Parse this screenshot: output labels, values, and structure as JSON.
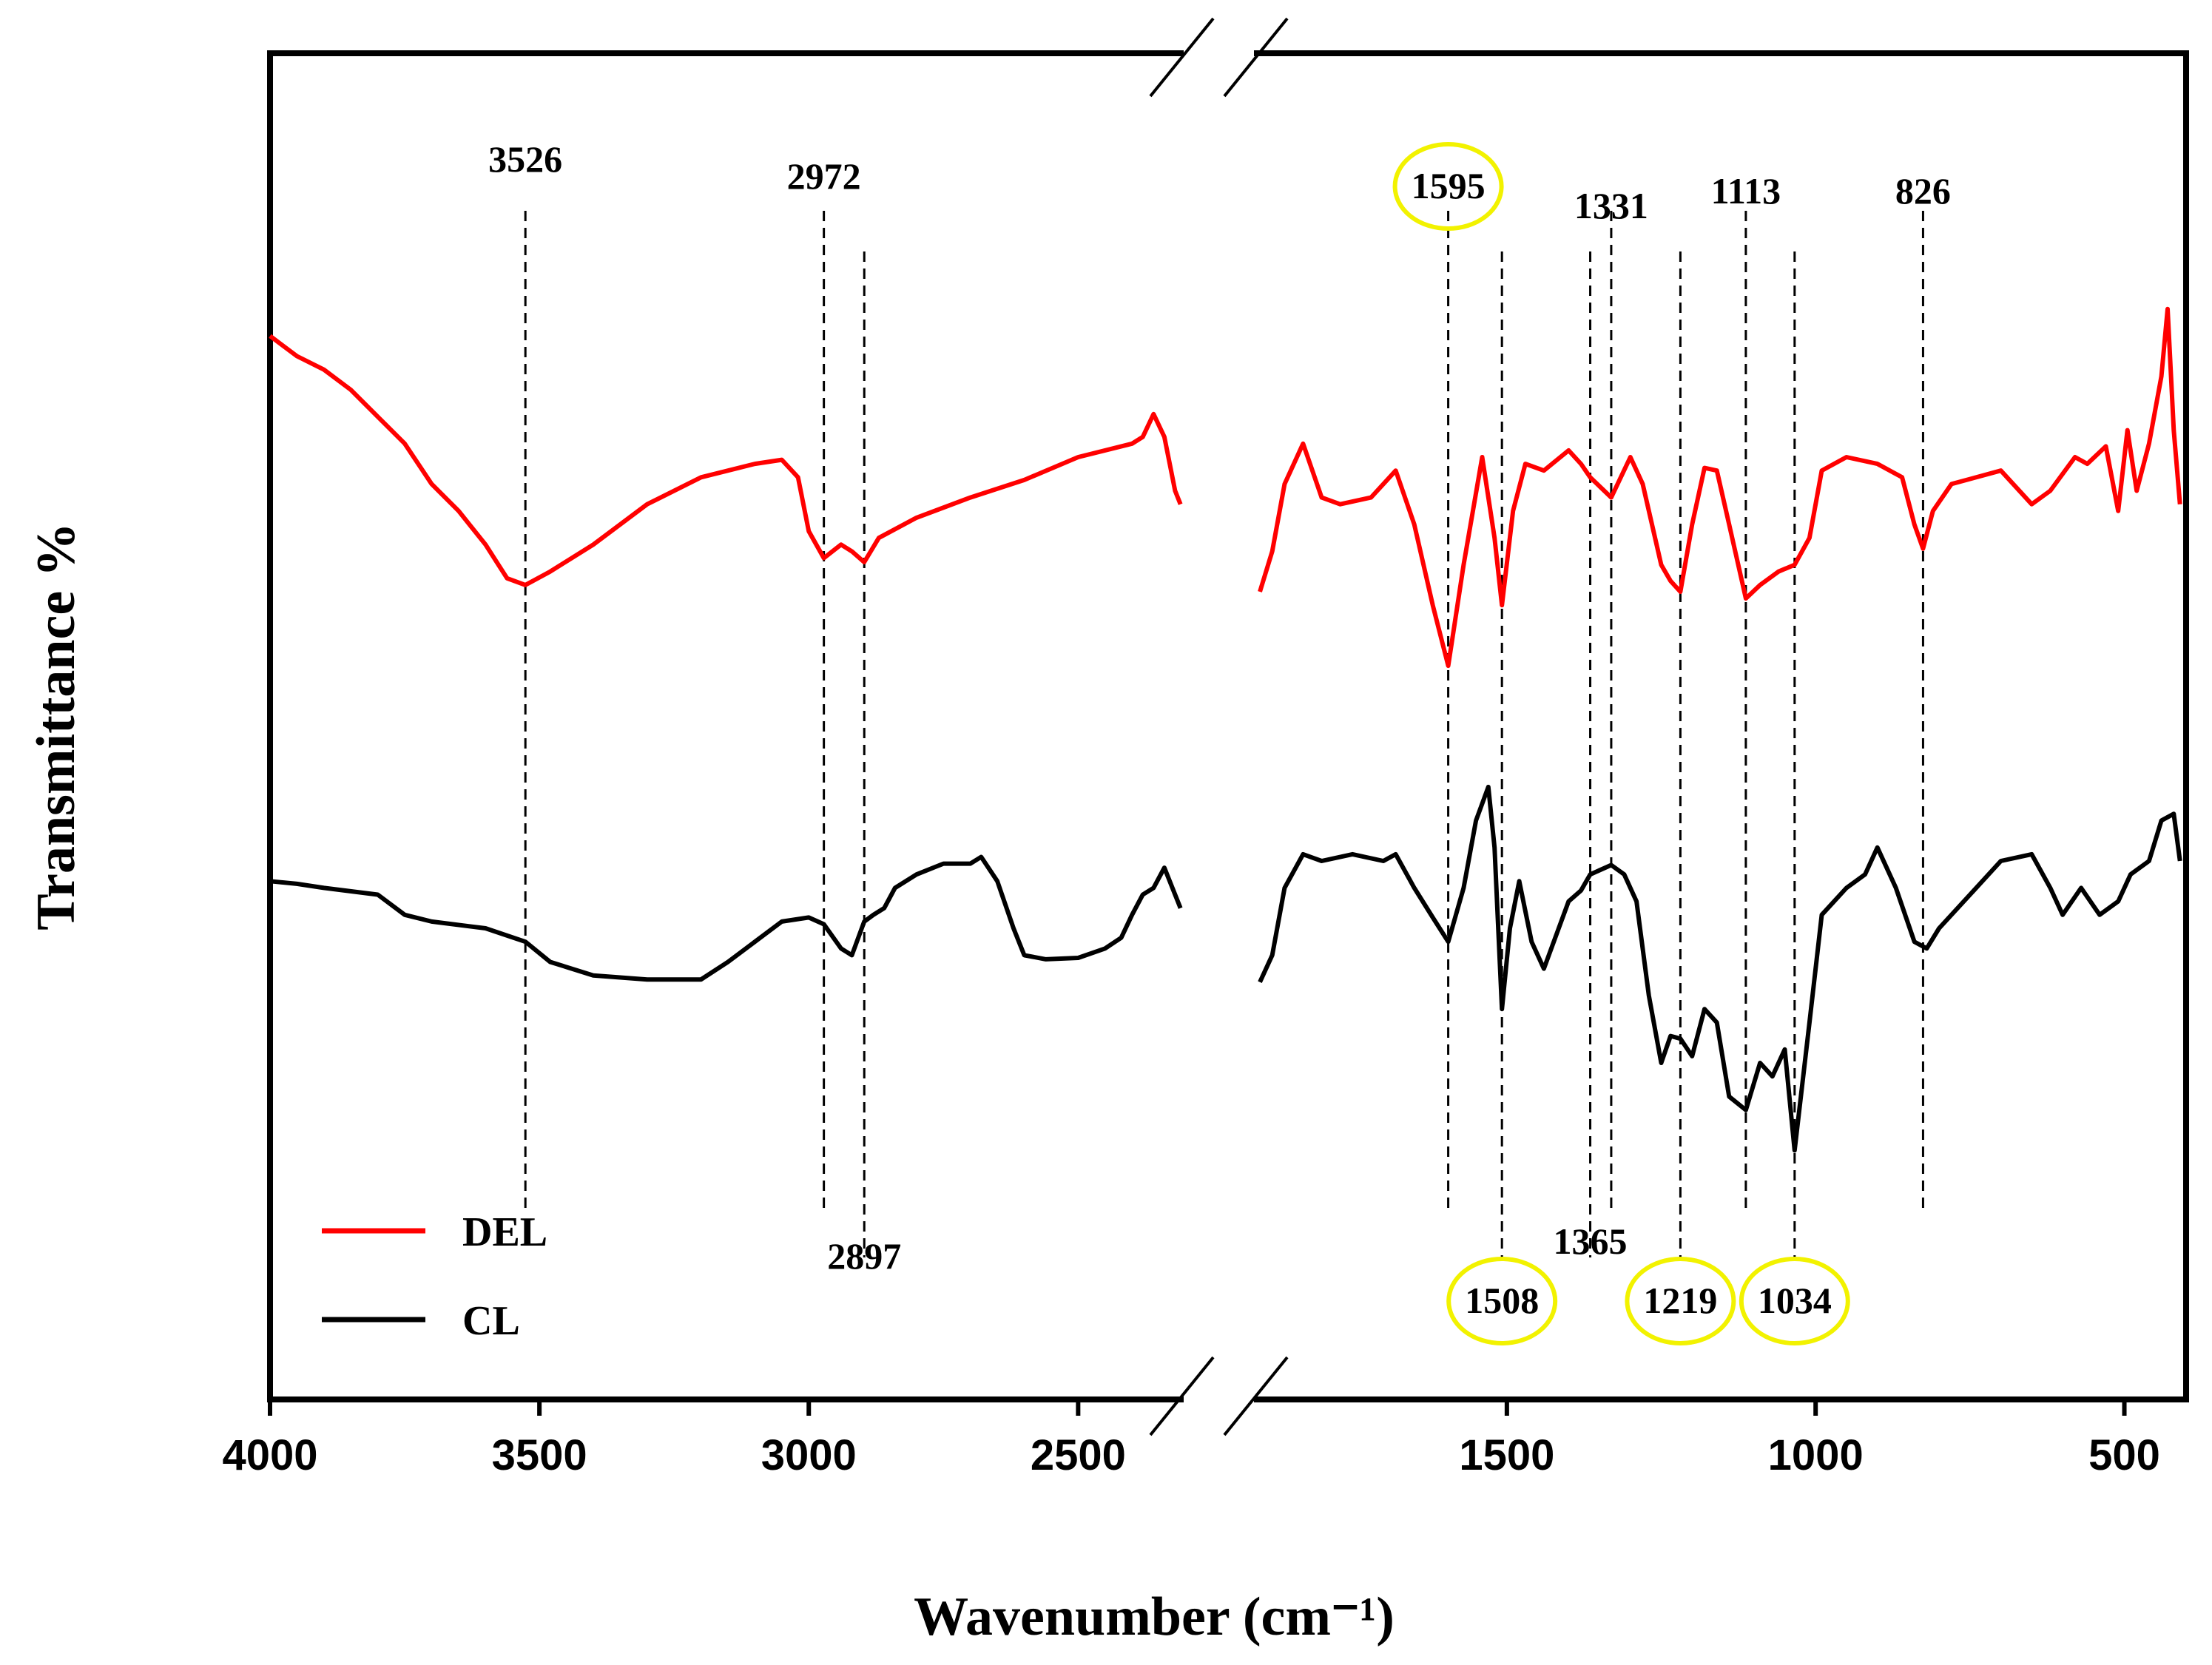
{
  "chart_data": {
    "type": "line",
    "title": "",
    "xlabel": "Wavenumber (cm⁻¹)",
    "ylabel": "Transmittance %",
    "xlim": [
      4000,
      400
    ],
    "axis_break": [
      2300,
      1900
    ],
    "x_ticks": [
      4000,
      3500,
      3000,
      2500,
      1500,
      1000,
      500
    ],
    "x_tick_labels": [
      "4000",
      "3500",
      "3000",
      "2500",
      "1500",
      "1000",
      "500"
    ],
    "y_ticks": [],
    "ylim": [
      0,
      100
    ],
    "legend": {
      "position": "bottom-left",
      "entries": [
        "DEL",
        "CL"
      ]
    },
    "series": [
      {
        "name": "DEL",
        "color": "#ff0000",
        "points": [
          [
            4000,
            79
          ],
          [
            3950,
            77.5
          ],
          [
            3900,
            76.5
          ],
          [
            3850,
            75
          ],
          [
            3800,
            73
          ],
          [
            3750,
            71
          ],
          [
            3700,
            68
          ],
          [
            3650,
            66
          ],
          [
            3600,
            63.5
          ],
          [
            3560,
            61
          ],
          [
            3526,
            60.5
          ],
          [
            3480,
            61.5
          ],
          [
            3400,
            63.5
          ],
          [
            3300,
            66.5
          ],
          [
            3200,
            68.5
          ],
          [
            3100,
            69.5
          ],
          [
            3050,
            69.8
          ],
          [
            3020,
            68.5
          ],
          [
            3000,
            64.5
          ],
          [
            2972,
            62.5
          ],
          [
            2940,
            63.5
          ],
          [
            2920,
            63
          ],
          [
            2897,
            62.2
          ],
          [
            2870,
            64
          ],
          [
            2800,
            65.5
          ],
          [
            2700,
            67
          ],
          [
            2600,
            68.3
          ],
          [
            2500,
            70
          ],
          [
            2400,
            71
          ],
          [
            2380,
            71.5
          ],
          [
            2360,
            73.2
          ],
          [
            2340,
            71.5
          ],
          [
            2320,
            67.5
          ],
          [
            2310,
            66.5
          ]
        ]
      },
      {
        "name": "DEL",
        "color": "#ff0000",
        "points": [
          [
            1900,
            60
          ],
          [
            1880,
            63
          ],
          [
            1860,
            68
          ],
          [
            1830,
            71
          ],
          [
            1800,
            67
          ],
          [
            1770,
            66.5
          ],
          [
            1720,
            67
          ],
          [
            1680,
            69
          ],
          [
            1650,
            65
          ],
          [
            1620,
            59
          ],
          [
            1595,
            54.5
          ],
          [
            1570,
            62
          ],
          [
            1540,
            70
          ],
          [
            1520,
            64
          ],
          [
            1508,
            59
          ],
          [
            1490,
            66
          ],
          [
            1470,
            69.5
          ],
          [
            1440,
            69
          ],
          [
            1400,
            70.5
          ],
          [
            1380,
            69.5
          ],
          [
            1365,
            68.5
          ],
          [
            1331,
            67
          ],
          [
            1300,
            70
          ],
          [
            1280,
            68
          ],
          [
            1250,
            62
          ],
          [
            1235,
            60.8
          ],
          [
            1219,
            60
          ],
          [
            1200,
            65
          ],
          [
            1180,
            69.2
          ],
          [
            1160,
            69
          ],
          [
            1140,
            65
          ],
          [
            1113,
            59.5
          ],
          [
            1090,
            60.5
          ],
          [
            1060,
            61.5
          ],
          [
            1034,
            62
          ],
          [
            1010,
            64
          ],
          [
            990,
            69
          ],
          [
            950,
            70
          ],
          [
            900,
            69.5
          ],
          [
            860,
            68.5
          ],
          [
            840,
            65
          ],
          [
            826,
            63.2
          ],
          [
            810,
            66
          ],
          [
            780,
            68
          ],
          [
            700,
            69
          ],
          [
            650,
            66.5
          ],
          [
            620,
            67.5
          ],
          [
            580,
            70
          ],
          [
            560,
            69.5
          ],
          [
            530,
            70.8
          ],
          [
            510,
            66
          ],
          [
            495,
            72
          ],
          [
            480,
            67.5
          ],
          [
            460,
            71
          ],
          [
            440,
            76
          ],
          [
            430,
            81
          ],
          [
            420,
            72
          ],
          [
            410,
            66.5
          ]
        ]
      },
      {
        "name": "CL",
        "color": "#000000",
        "points": [
          [
            4000,
            38.5
          ],
          [
            3950,
            38.3
          ],
          [
            3900,
            38
          ],
          [
            3800,
            37.5
          ],
          [
            3750,
            36
          ],
          [
            3700,
            35.5
          ],
          [
            3600,
            35
          ],
          [
            3526,
            34
          ],
          [
            3480,
            32.5
          ],
          [
            3400,
            31.5
          ],
          [
            3300,
            31.2
          ],
          [
            3200,
            31.2
          ],
          [
            3150,
            32.5
          ],
          [
            3100,
            34
          ],
          [
            3050,
            35.5
          ],
          [
            3000,
            35.8
          ],
          [
            2972,
            35.3
          ],
          [
            2940,
            33.5
          ],
          [
            2920,
            33
          ],
          [
            2897,
            35.5
          ],
          [
            2880,
            36
          ],
          [
            2860,
            36.5
          ],
          [
            2840,
            38
          ],
          [
            2800,
            39
          ],
          [
            2750,
            39.8
          ],
          [
            2700,
            39.8
          ],
          [
            2680,
            40.3
          ],
          [
            2650,
            38.5
          ],
          [
            2620,
            35
          ],
          [
            2600,
            33
          ],
          [
            2560,
            32.7
          ],
          [
            2500,
            32.8
          ],
          [
            2450,
            33.5
          ],
          [
            2420,
            34.3
          ],
          [
            2400,
            36
          ],
          [
            2380,
            37.5
          ],
          [
            2360,
            38
          ],
          [
            2340,
            39.5
          ],
          [
            2320,
            37.5
          ],
          [
            2310,
            36.5
          ]
        ]
      },
      {
        "name": "CL",
        "color": "#000000",
        "points": [
          [
            1900,
            31
          ],
          [
            1880,
            33
          ],
          [
            1860,
            38
          ],
          [
            1830,
            40.5
          ],
          [
            1800,
            40
          ],
          [
            1750,
            40.5
          ],
          [
            1700,
            40
          ],
          [
            1680,
            40.5
          ],
          [
            1650,
            38
          ],
          [
            1620,
            35.8
          ],
          [
            1595,
            34
          ],
          [
            1570,
            38
          ],
          [
            1550,
            43
          ],
          [
            1530,
            45.5
          ],
          [
            1520,
            41
          ],
          [
            1508,
            29
          ],
          [
            1495,
            35
          ],
          [
            1480,
            38.5
          ],
          [
            1460,
            34
          ],
          [
            1440,
            32
          ],
          [
            1420,
            34.5
          ],
          [
            1400,
            37
          ],
          [
            1380,
            37.8
          ],
          [
            1365,
            39
          ],
          [
            1331,
            39.7
          ],
          [
            1310,
            39
          ],
          [
            1290,
            37
          ],
          [
            1270,
            30
          ],
          [
            1250,
            25
          ],
          [
            1235,
            27
          ],
          [
            1219,
            26.8
          ],
          [
            1200,
            25.5
          ],
          [
            1180,
            29
          ],
          [
            1160,
            28
          ],
          [
            1140,
            22.5
          ],
          [
            1113,
            21.5
          ],
          [
            1090,
            25
          ],
          [
            1070,
            24
          ],
          [
            1050,
            26
          ],
          [
            1034,
            18.5
          ],
          [
            1010,
            28
          ],
          [
            990,
            36
          ],
          [
            950,
            38
          ],
          [
            920,
            39
          ],
          [
            900,
            41
          ],
          [
            870,
            38
          ],
          [
            840,
            34
          ],
          [
            820,
            33.5
          ],
          [
            800,
            35
          ],
          [
            750,
            37.5
          ],
          [
            700,
            40
          ],
          [
            650,
            40.5
          ],
          [
            620,
            38
          ],
          [
            600,
            36
          ],
          [
            570,
            38
          ],
          [
            540,
            36
          ],
          [
            510,
            37
          ],
          [
            490,
            39
          ],
          [
            460,
            40
          ],
          [
            440,
            43
          ],
          [
            420,
            43.5
          ],
          [
            410,
            40
          ]
        ]
      }
    ],
    "annotations": [
      {
        "label": "3526",
        "x": 3526,
        "circled": false,
        "label_side": "top"
      },
      {
        "label": "2972",
        "x": 2972,
        "circled": false,
        "label_side": "top"
      },
      {
        "label": "2897",
        "x": 2897,
        "circled": false,
        "label_side": "bottom"
      },
      {
        "label": "1595",
        "x": 1595,
        "circled": true,
        "label_side": "top"
      },
      {
        "label": "1508",
        "x": 1508,
        "circled": true,
        "label_side": "bottom"
      },
      {
        "label": "1365",
        "x": 1365,
        "circled": false,
        "label_side": "bottom"
      },
      {
        "label": "1331",
        "x": 1331,
        "circled": false,
        "label_side": "top"
      },
      {
        "label": "1219",
        "x": 1219,
        "circled": true,
        "label_side": "bottom"
      },
      {
        "label": "1113",
        "x": 1113,
        "circled": false,
        "label_side": "top"
      },
      {
        "label": "1034",
        "x": 1034,
        "circled": true,
        "label_side": "bottom"
      },
      {
        "label": "826",
        "x": 826,
        "circled": false,
        "label_side": "top"
      }
    ],
    "highlight_color": "#f2f200"
  }
}
